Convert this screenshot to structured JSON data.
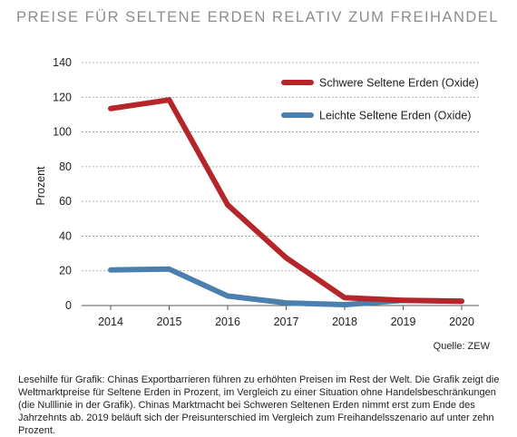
{
  "header": {
    "title": "PREISE FÜR SELTENE ERDEN RELATIV ZUM FREIHANDEL"
  },
  "chart_data": {
    "type": "line",
    "title": "PREISE FÜR SELTENE ERDEN RELATIV ZUM FREIHANDEL",
    "xlabel": "",
    "ylabel": "Prozent",
    "x": [
      "2014",
      "2015",
      "2016",
      "2017",
      "2018",
      "2019",
      "2020"
    ],
    "ylim": [
      0,
      140
    ],
    "yticks": [
      0,
      20,
      40,
      60,
      80,
      100,
      120,
      140
    ],
    "grid": true,
    "legend_position": "top-right",
    "series": [
      {
        "name": "Schwere Seltene Erden (Oxide)",
        "color": "#b5262b",
        "values": [
          113.5,
          118.5,
          58,
          27.5,
          4.5,
          3,
          2.5
        ]
      },
      {
        "name": "Leichte Seltene Erden (Oxide)",
        "color": "#4a7fae",
        "values": [
          20.5,
          21,
          5.5,
          1.5,
          0.5,
          3,
          2.5
        ]
      }
    ]
  },
  "footer": {
    "source": "Quelle: ZEW",
    "note": "Lesehilfe für Grafik: Chinas Exportbarrieren führen zu erhöhten Preisen im Rest der Welt. Die Grafik zeigt die Weltmarktpreise für Seltene Erden in Prozent, im Vergleich zu einer Situation ohne Handelsbeschränkungen (die Nulllinie in der Grafik). Chinas Marktmacht bei Schweren Seltenen Erden nimmt erst zum Ende des Jahrzehnts ab. 2019 beläuft sich der Preisunterschied im Vergleich zum Freihandelsszenario auf unter zehn Prozent."
  }
}
